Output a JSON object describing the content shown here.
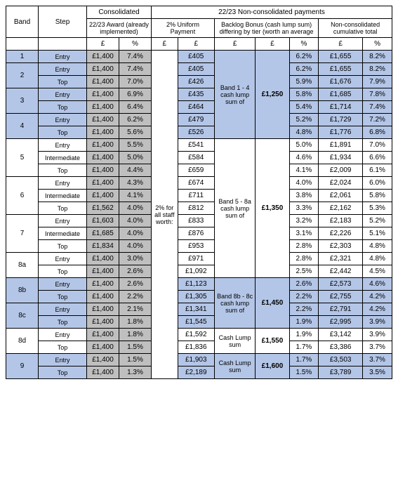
{
  "colors": {
    "blue": "#b4c6e7",
    "grey": "#bfbfbf",
    "white": "#ffffff",
    "border": "#000000",
    "text": "#000000"
  },
  "typography": {
    "font_family": "Arial",
    "base_size_pt": 10
  },
  "header": {
    "consolidated": "Consolidated",
    "noncon": "22/23 Non-consolidated payments",
    "band": "Band",
    "step": "Step",
    "award": "22/23 Award (already implemented)",
    "uniform": "2% Uniform Payment",
    "backlog": "Backlog Bonus (cash lump sum) differing by tier (worth an average",
    "cumulative": "Non-consolidated cumulative total",
    "gbp": "£",
    "pct": "%"
  },
  "uniform_label": "2% for all staff worth:",
  "backlog_groups": [
    {
      "label": "Band 1 - 4 cash lump sum of",
      "value": "£1,250"
    },
    {
      "label": "Band 5 - 8a cash lump sum of",
      "value": "£1,350"
    },
    {
      "label": "Band 8b - 8c cash lump sum of",
      "value": "£1,450"
    },
    {
      "label": "Cash Lump sum",
      "value": "£1,550"
    },
    {
      "label": "Cash Lump sum",
      "value": "£1,600"
    }
  ],
  "bands": [
    {
      "band": "1",
      "shade": "blue",
      "rows": [
        {
          "step": "Entry",
          "ag": "£1,400",
          "ap": "7.4%",
          "uv": "£405",
          "bp": "6.2%",
          "cv": "£1,655",
          "cp": "8.2%"
        }
      ]
    },
    {
      "band": "2",
      "shade": "blue",
      "rows": [
        {
          "step": "Entry",
          "ag": "£1,400",
          "ap": "7.4%",
          "uv": "£405",
          "bp": "6.2%",
          "cv": "£1,655",
          "cp": "8.2%"
        },
        {
          "step": "Top",
          "ag": "£1,400",
          "ap": "7.0%",
          "uv": "£426",
          "bp": "5.9%",
          "cv": "£1,676",
          "cp": "7.9%"
        }
      ]
    },
    {
      "band": "3",
      "shade": "blue",
      "rows": [
        {
          "step": "Entry",
          "ag": "£1,400",
          "ap": "6.9%",
          "uv": "£435",
          "bp": "5.8%",
          "cv": "£1,685",
          "cp": "7.8%"
        },
        {
          "step": "Top",
          "ag": "£1,400",
          "ap": "6.4%",
          "uv": "£464",
          "bp": "5.4%",
          "cv": "£1,714",
          "cp": "7.4%"
        }
      ]
    },
    {
      "band": "4",
      "shade": "blue",
      "rows": [
        {
          "step": "Entry",
          "ag": "£1,400",
          "ap": "6.2%",
          "uv": "£479",
          "bp": "5.2%",
          "cv": "£1,729",
          "cp": "7.2%"
        },
        {
          "step": "Top",
          "ag": "£1,400",
          "ap": "5.6%",
          "uv": "£526",
          "bp": "4.8%",
          "cv": "£1,776",
          "cp": "6.8%"
        }
      ]
    },
    {
      "band": "5",
      "shade": "white",
      "rows": [
        {
          "step": "Entry",
          "ag": "£1,400",
          "ap": "5.5%",
          "uv": "£541",
          "bp": "5.0%",
          "cv": "£1,891",
          "cp": "7.0%"
        },
        {
          "step": "Intermediate",
          "ag": "£1,400",
          "ap": "5.0%",
          "uv": "£584",
          "bp": "4.6%",
          "cv": "£1,934",
          "cp": "6.6%"
        },
        {
          "step": "Top",
          "ag": "£1,400",
          "ap": "4.4%",
          "uv": "£659",
          "bp": "4.1%",
          "cv": "£2,009",
          "cp": "6.1%"
        }
      ]
    },
    {
      "band": "6",
      "shade": "white",
      "rows": [
        {
          "step": "Entry",
          "ag": "£1,400",
          "ap": "4.3%",
          "uv": "£674",
          "bp": "4.0%",
          "cv": "£2,024",
          "cp": "6.0%"
        },
        {
          "step": "Intermediate",
          "ag": "£1,400",
          "ap": "4.1%",
          "uv": "£711",
          "bp": "3.8%",
          "cv": "£2,061",
          "cp": "5.8%"
        },
        {
          "step": "Top",
          "ag": "£1,562",
          "ap": "4.0%",
          "uv": "£812",
          "bp": "3.3%",
          "cv": "£2,162",
          "cp": "5.3%"
        }
      ]
    },
    {
      "band": "7",
      "shade": "white",
      "rows": [
        {
          "step": "Entry",
          "ag": "£1,603",
          "ap": "4.0%",
          "uv": "£833",
          "bp": "3.2%",
          "cv": "£2,183",
          "cp": "5.2%"
        },
        {
          "step": "Intermediate",
          "ag": "£1,685",
          "ap": "4.0%",
          "uv": "£876",
          "bp": "3.1%",
          "cv": "£2,226",
          "cp": "5.1%"
        },
        {
          "step": "Top",
          "ag": "£1,834",
          "ap": "4.0%",
          "uv": "£953",
          "bp": "2.8%",
          "cv": "£2,303",
          "cp": "4.8%"
        }
      ]
    },
    {
      "band": "8a",
      "shade": "white",
      "rows": [
        {
          "step": "Entry",
          "ag": "£1,400",
          "ap": "3.0%",
          "uv": "£971",
          "bp": "2.8%",
          "cv": "£2,321",
          "cp": "4.8%"
        },
        {
          "step": "Top",
          "ag": "£1,400",
          "ap": "2.6%",
          "uv": "£1,092",
          "bp": "2.5%",
          "cv": "£2,442",
          "cp": "4.5%"
        }
      ]
    },
    {
      "band": "8b",
      "shade": "blue",
      "rows": [
        {
          "step": "Entry",
          "ag": "£1,400",
          "ap": "2.6%",
          "uv": "£1,123",
          "bp": "2.6%",
          "cv": "£2,573",
          "cp": "4.6%"
        },
        {
          "step": "Top",
          "ag": "£1,400",
          "ap": "2.2%",
          "uv": "£1,305",
          "bp": "2.2%",
          "cv": "£2,755",
          "cp": "4.2%"
        }
      ]
    },
    {
      "band": "8c",
      "shade": "blue",
      "rows": [
        {
          "step": "Entry",
          "ag": "£1,400",
          "ap": "2.1%",
          "uv": "£1,341",
          "bp": "2.2%",
          "cv": "£2,791",
          "cp": "4.2%"
        },
        {
          "step": "Top",
          "ag": "£1,400",
          "ap": "1.8%",
          "uv": "£1,545",
          "bp": "1.9%",
          "cv": "£2,995",
          "cp": "3.9%"
        }
      ]
    },
    {
      "band": "8d",
      "shade": "white",
      "rows": [
        {
          "step": "Entry",
          "ag": "£1,400",
          "ap": "1.8%",
          "uv": "£1,592",
          "bp": "1.9%",
          "cv": "£3,142",
          "cp": "3.9%"
        },
        {
          "step": "Top",
          "ag": "£1,400",
          "ap": "1.5%",
          "uv": "£1,836",
          "bp": "1.7%",
          "cv": "£3,386",
          "cp": "3.7%"
        }
      ]
    },
    {
      "band": "9",
      "shade": "blue",
      "rows": [
        {
          "step": "Entry",
          "ag": "£1,400",
          "ap": "1.5%",
          "uv": "£1,903",
          "bp": "1.7%",
          "cv": "£3,503",
          "cp": "3.7%"
        },
        {
          "step": "Top",
          "ag": "£1,400",
          "ap": "1.3%",
          "uv": "£2,189",
          "bp": "1.5%",
          "cv": "£3,789",
          "cp": "3.5%"
        }
      ]
    }
  ]
}
